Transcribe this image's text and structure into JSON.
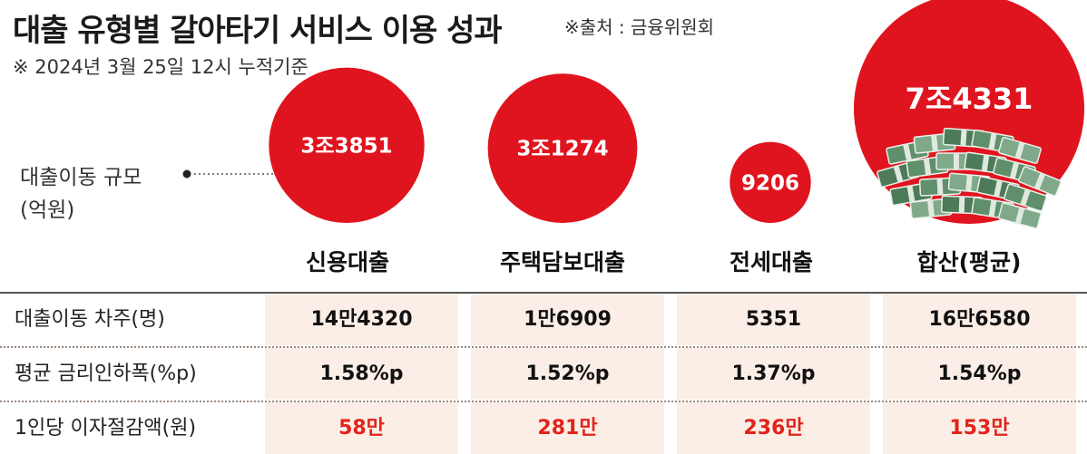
{
  "title": "대출 유형별 갈아타기 서비스 이용 성과",
  "source": "※출처 : 금융위원회",
  "subtitle": "※ 2024년 3월 25일 12시 누적기준",
  "legend": {
    "line1": "대출이동 규모",
    "line2": "(억원)"
  },
  "colors": {
    "bubble": "#e0141e",
    "highlight": "#e2231a",
    "cell_bg": "#fbeee6",
    "money": "#6e9b78"
  },
  "chart_data": {
    "type": "bubble",
    "metric": "대출이동 규모 (억원)",
    "categories": [
      "신용대출",
      "주택담보대출",
      "전세대출",
      "합산(평균)"
    ],
    "values": [
      33851,
      31274,
      9206,
      74331
    ],
    "labels": [
      "3조3851",
      "3조1274",
      "9206",
      "7조4331"
    ],
    "table": {
      "rows": [
        {
          "label": "대출이동 차주(명)",
          "values": [
            "14만4320",
            "1만6909",
            "5351",
            "16만6580"
          ]
        },
        {
          "label": "평균 금리인하폭(%p)",
          "values": [
            "1.58%p",
            "1.52%p",
            "1.37%p",
            "1.54%p"
          ]
        },
        {
          "label": "1인당 이자절감액(원)",
          "values": [
            "58만",
            "281만",
            "236만",
            "153만"
          ],
          "highlight": true
        }
      ]
    }
  }
}
